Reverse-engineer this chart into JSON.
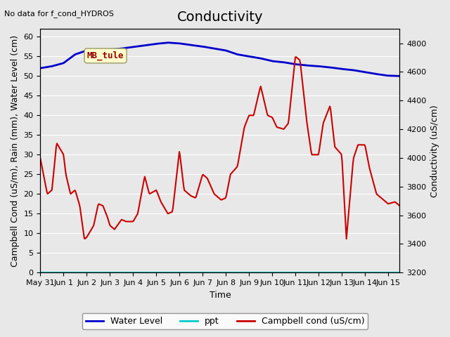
{
  "title": "Conductivity",
  "top_left_text": "No data for f_cond_HYDROS",
  "annotation_label": "MB_tule",
  "xlabel": "Time",
  "ylabel_left": "Campbell Cond (uS/m), Rain (mm), Water Level (cm)",
  "ylabel_right": "Conductivity (uS/cm)",
  "xlim_days": [
    0,
    15.5
  ],
  "ylim_left": [
    0,
    62
  ],
  "ylim_right": [
    3200,
    4900
  ],
  "x_ticks_labels": [
    "May 31",
    "Jun 1",
    "Jun 2",
    "Jun 3",
    "Jun 4",
    "Jun 5",
    "Jun 6",
    "Jun 7",
    "Jun 8",
    "Jun 9",
    "Jun 10",
    "Jun 11",
    "Jun 12",
    "Jun 13",
    "Jun 14",
    "Jun 15"
  ],
  "legend_entries": [
    "Water Level",
    "ppt",
    "Campbell cond (uS/cm)"
  ],
  "legend_colors": [
    "#0000cc",
    "#00cccc",
    "#cc0000"
  ],
  "background_color": "#e8e8e8",
  "figure_bg": "#f0f0f0",
  "grid_color": "#ffffff",
  "water_level_color": "#0000cc",
  "campbell_color": "#cc0000",
  "ppt_color": "#00cccc",
  "annotation_bg": "#ffffcc",
  "annotation_text_color": "#990000",
  "title_fontsize": 14,
  "axis_label_fontsize": 9,
  "tick_fontsize": 8
}
